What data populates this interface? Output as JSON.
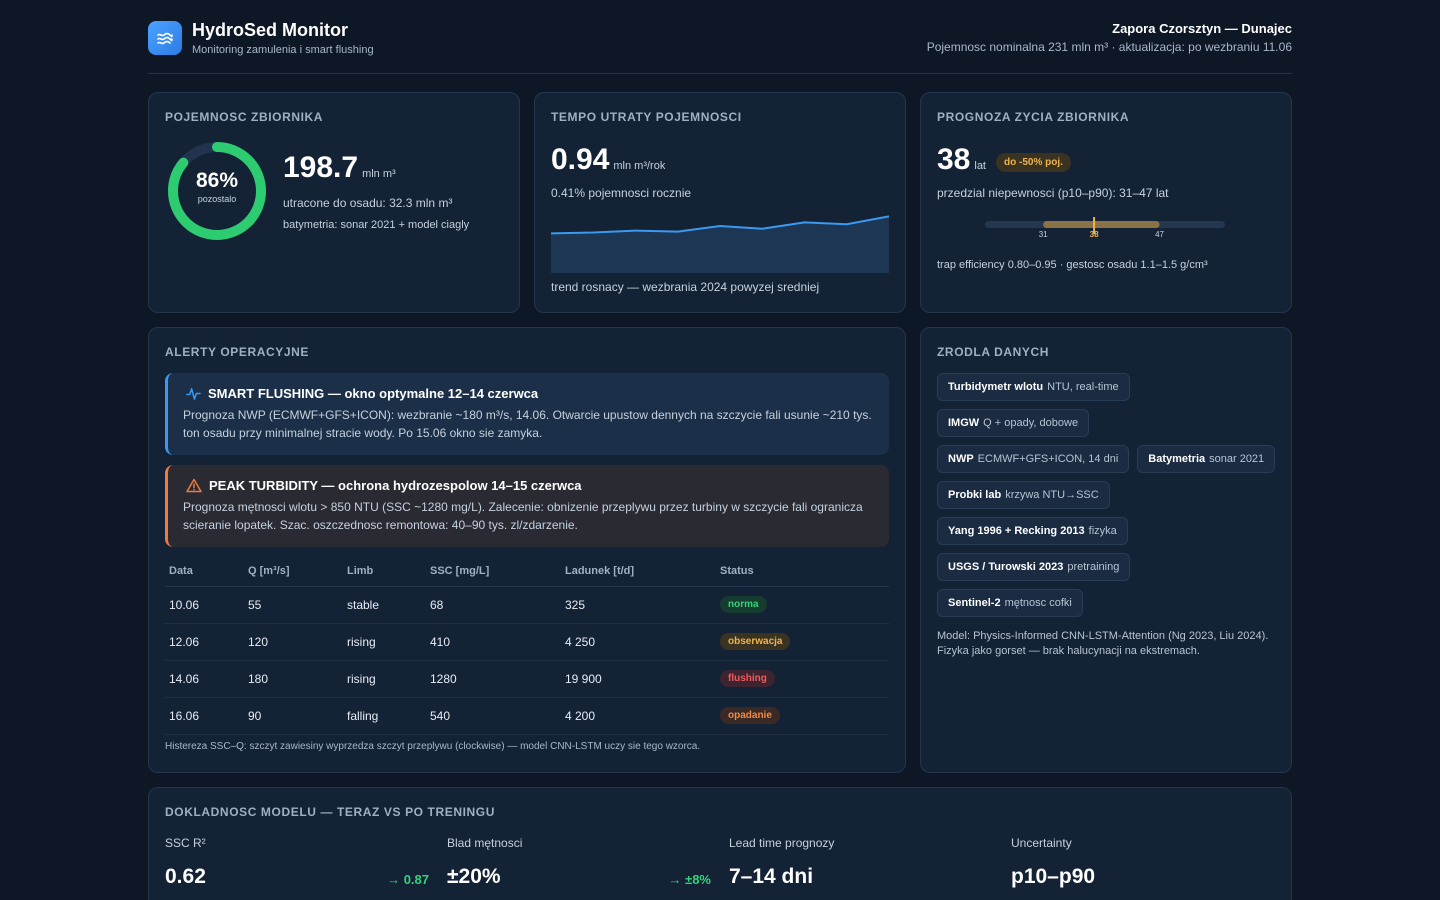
{
  "header": {
    "app_title": "HydroSed Monitor",
    "app_subtitle": "Monitoring zamulenia i smart flushing",
    "site_name": "Zapora Czorsztyn — Dunajec",
    "site_meta": "Pojemnosc nominalna 231 mln m³ · aktualizacja: po wezbraniu 11.06",
    "logo_icon": "waves-icon"
  },
  "capacity": {
    "title": "POJEMNOSC ZBIORNIKA",
    "ring_value": "86%",
    "ring_fraction": 0.86,
    "ring_label": "pozostalo",
    "value": "198.7",
    "unit": "mln m³",
    "lost": "utracone do osadu: 32.3 mln m³",
    "bathymetry": "batymetria: sonar 2021 + model ciagly"
  },
  "rate": {
    "title": "TEMPO UTRATY POJEMNOSCI",
    "value": "0.94",
    "unit": "mln m³/rok",
    "percent": "0.41% pojemnosci rocznie",
    "trend": "trend rosnacy — wezbrania 2024 powyzej sredniej",
    "sparkline": [
      0.6,
      0.62,
      0.66,
      0.64,
      0.76,
      0.7,
      0.84,
      0.8,
      0.97
    ]
  },
  "life": {
    "title": "PROGNOZA ZYCIA ZBIORNIKA",
    "value": "38",
    "unit": "lat",
    "badge": "do -50% poj.",
    "uncertainty": "przedzial niepewnosci (p10–p90): 31–47 lat",
    "p10": 31,
    "median": 38,
    "p90": 47,
    "scale_min": 23,
    "scale_max": 56,
    "tick_p10": "31",
    "tick_median": "38",
    "tick_p90": "47",
    "footer": "trap efficiency 0.80–0.95 · gestosc osadu 1.1–1.5 g/cm³"
  },
  "alerts": {
    "title": "ALERTY OPERACYJNE",
    "flushing": {
      "icon": "pulse-icon",
      "heading": "SMART FLUSHING — okno optymalne 12–14 czerwca",
      "body": "Prognoza NWP (ECMWF+GFS+ICON): wezbranie ~180 m³/s, 14.06. Otwarcie upustow dennych na szczycie fali usunie ~210 tys. ton osadu przy minimalnej stracie wody. Po 15.06 okno sie zamyka."
    },
    "turbidity": {
      "icon": "warning-triangle-icon",
      "heading": "PEAK TURBIDITY — ochrona hydrozespolow 14–15 czerwca",
      "body": "Prognoza mętnosci wlotu > 850 NTU (SSC ~1280 mg/L). Zalecenie: obnizenie przeplywu przez turbiny w szczycie fali ogranicza scieranie lopatek. Szac. oszczednosc remontowa: 40–90 tys. zl/zdarzenie."
    },
    "table": {
      "headers": [
        "Data",
        "Q [m³/s]",
        "Limb",
        "SSC [mg/L]",
        "Ladunek [t/d]",
        "Status"
      ],
      "rows": [
        {
          "date": "10.06",
          "q": "55",
          "limb": "stable",
          "ssc": "68",
          "load": "325",
          "status": "norma",
          "status_color": "#34d27a"
        },
        {
          "date": "12.06",
          "q": "120",
          "limb": "rising",
          "ssc": "410",
          "load": "4 250",
          "status": "obserwacja",
          "status_color": "#f0b44c"
        },
        {
          "date": "14.06",
          "q": "180",
          "limb": "rising",
          "ssc": "1280",
          "load": "19 900",
          "status": "flushing",
          "status_color": "#f15b5b"
        },
        {
          "date": "16.06",
          "q": "90",
          "limb": "falling",
          "ssc": "540",
          "load": "4 200",
          "status": "opadanie",
          "status_color": "#f08a45"
        }
      ]
    },
    "note": "Histereza SSC–Q: szczyt zawiesiny wyprzedza szczyt przeplywu (clockwise) — model CNN-LSTM uczy sie tego wzorca."
  },
  "sources": {
    "title": "ZRODLA DANYCH",
    "chips": [
      {
        "name": "Turbidymetr wlotu",
        "detail": "NTU, real-time"
      },
      {
        "name": "IMGW",
        "detail": "Q + opady, dobowe"
      },
      {
        "name": "NWP",
        "detail": "ECMWF+GFS+ICON, 14 dni"
      },
      {
        "name": "Batymetria",
        "detail": "sonar 2021"
      },
      {
        "name": "Probki lab",
        "detail": "krzywa NTU→SSC"
      },
      {
        "name": "Yang 1996 + Recking 2013",
        "detail": "fizyka"
      },
      {
        "name": "USGS / Turowski 2023",
        "detail": "pretraining"
      },
      {
        "name": "Sentinel-2",
        "detail": "mętnosc cofki"
      }
    ],
    "note": "Model: Physics-Informed CNN-LSTM-Attention (Ng 2023, Liu 2024). Fizyka jako gorset — brak halucynacji na ekstremach."
  },
  "accuracy": {
    "title": "DOKLADNOSC MODELU — TERAZ VS PO TRENINGU",
    "metrics": [
      {
        "label": "SSC R²",
        "value": "0.62",
        "gain": "→ 0.87"
      },
      {
        "label": "Blad mętnosci",
        "value": "±20%",
        "gain": "→ ±8%"
      },
      {
        "label": "Lead time prognozy",
        "value": "7–14 dni",
        "gain": ""
      },
      {
        "label": "Uncertainty",
        "value": "p10–p90",
        "gain": ""
      }
    ]
  },
  "colors": {
    "accent_blue": "#3a9af2",
    "ring_green": "#2ecc71",
    "warn_orange": "#ee7a3d",
    "amber": "#f0b44c"
  }
}
